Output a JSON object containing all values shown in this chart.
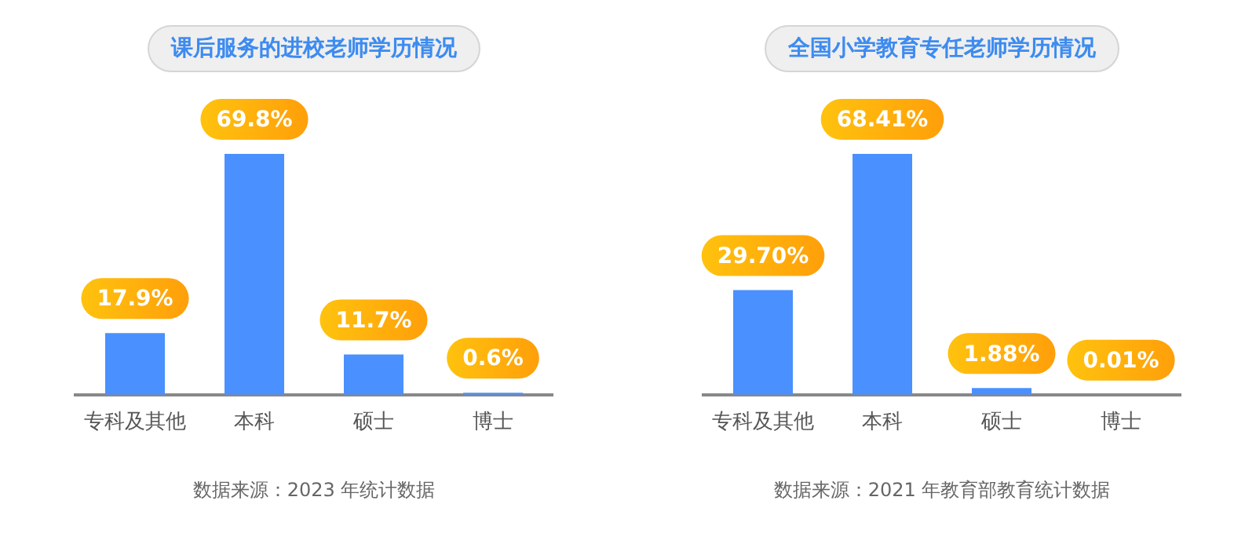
{
  "chart_data": [
    {
      "type": "bar",
      "title": "课后服务的进校老师学历情况",
      "categories": [
        "专科及其他",
        "本科",
        "硕士",
        "博士"
      ],
      "values": [
        17.9,
        69.8,
        11.7,
        0.6
      ],
      "value_labels": [
        "17.9%",
        "69.8%",
        "11.7%",
        "0.6%"
      ],
      "color": "#4a90ff",
      "annotations": [
        "数据来源：2023 年统计数据"
      ],
      "grid": false,
      "legend": false,
      "tick_labels": "x"
    },
    {
      "type": "bar",
      "title": "全国小学教育专任老师学历情况",
      "categories": [
        "专科及其他",
        "本科",
        "硕士",
        "博士"
      ],
      "values": [
        29.7,
        68.41,
        1.88,
        0.01
      ],
      "value_labels": [
        "29.70%",
        "68.41%",
        "1.88%",
        "0.01%"
      ],
      "color": "#4a90ff",
      "annotations": [
        "数据来源：2021 年教育部教育统计数据"
      ],
      "grid": false,
      "legend": false,
      "tick_labels": "x"
    }
  ]
}
